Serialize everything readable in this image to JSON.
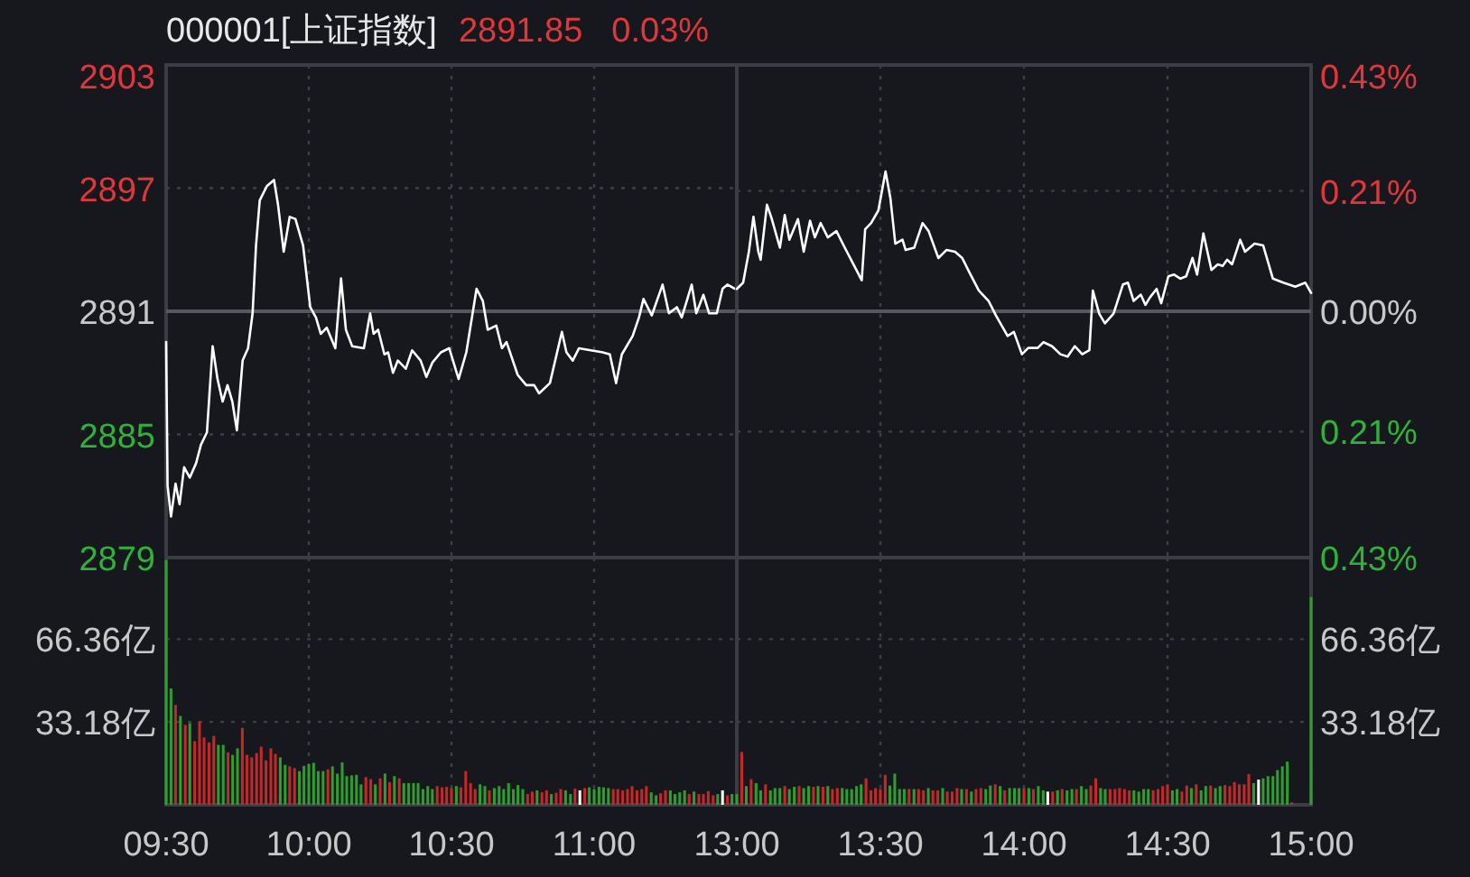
{
  "chart_data": [
    {
      "type": "line",
      "title": "000001[上证指数]",
      "annotations": [
        "2891.85",
        "0.03%"
      ],
      "x": [
        9.5,
        9.505,
        9.517,
        9.533,
        9.547,
        9.563,
        9.583,
        9.605,
        9.622,
        9.643,
        9.663,
        9.68,
        9.698,
        9.715,
        9.732,
        9.748,
        9.768,
        9.787,
        9.803,
        9.815,
        9.828,
        9.853,
        9.878,
        9.892,
        9.912,
        9.933,
        9.953,
        9.98,
        10.005,
        10.025,
        10.042,
        10.063,
        10.093,
        10.113,
        10.13,
        10.152,
        10.193,
        10.215,
        10.227,
        10.243,
        10.265,
        10.278,
        10.295,
        10.312,
        10.34,
        10.362,
        10.392,
        10.412,
        10.433,
        10.463,
        10.492,
        10.525,
        10.552,
        10.588,
        10.61,
        10.627,
        10.657,
        10.677,
        10.693,
        10.732,
        10.762,
        10.79,
        10.807,
        10.845,
        10.887,
        10.903,
        10.925,
        10.947,
        10.988,
        11.03,
        11.055,
        11.077,
        11.097,
        11.135,
        11.157,
        11.173,
        11.202,
        11.24,
        11.262,
        11.29,
        11.307,
        11.342,
        11.358,
        11.383,
        11.403,
        11.43,
        11.45,
        11.467,
        11.492
      ],
      "values": [
        2889.5,
        2882.5,
        2881.0,
        2882.6,
        2881.6,
        2883.4,
        2882.9,
        2883.6,
        2884.5,
        2885.1,
        2889.3,
        2887.7,
        2886.6,
        2887.4,
        2886.6,
        2885.2,
        2888.6,
        2889.2,
        2890.9,
        2894.2,
        2896.4,
        2897.1,
        2897.4,
        2896.2,
        2893.9,
        2895.6,
        2895.5,
        2894.2,
        2891.2,
        2890.7,
        2889.9,
        2890.2,
        2889.2,
        2892.6,
        2890.1,
        2889.3,
        2889.2,
        2890.9,
        2889.9,
        2890.1,
        2888.9,
        2889.0,
        2888.0,
        2888.6,
        2888.2,
        2889.1,
        2888.6,
        2887.8,
        2888.5,
        2889.0,
        2889.2,
        2887.7,
        2889.0,
        2892.1,
        2891.5,
        2890.1,
        2890.3,
        2889.2,
        2889.5,
        2887.9,
        2887.4,
        2887.4,
        2887.0,
        2887.5,
        2890.0,
        2889.0,
        2888.6,
        2889.2,
        2889.1,
        2889.0,
        2888.9,
        2887.5,
        2888.9,
        2889.8,
        2890.7,
        2891.6,
        2890.8,
        2892.3,
        2890.9,
        2891.2,
        2890.7,
        2892.3,
        2890.9,
        2891.8,
        2890.9,
        2890.9,
        2892.1,
        2892.3,
        2892.1
      ],
      "color": "#ffffff",
      "xlim": [
        9.5,
        11.5
      ],
      "ylim": [
        2879,
        2903
      ],
      "yticks": [
        2879,
        2885,
        2891,
        2897,
        2903
      ],
      "xticks": [
        {
          "value": 9.5,
          "label": null
        },
        {
          "value": 10,
          "label": null
        },
        {
          "value": 10.5,
          "label": null
        },
        {
          "value": 11,
          "label": null
        }
      ],
      "ref_lines": [
        {
          "axis": "y",
          "value": 2891
        }
      ],
      "grid": true,
      "tick_labels": "y"
    },
    {
      "type": "line",
      "x": [
        13,
        13.022,
        13.042,
        13.058,
        13.075,
        13.083,
        13.105,
        13.122,
        13.15,
        13.167,
        13.183,
        13.213,
        13.233,
        13.255,
        13.272,
        13.292,
        13.317,
        13.347,
        13.372,
        13.402,
        13.435,
        13.447,
        13.468,
        13.493,
        13.518,
        13.535,
        13.552,
        13.577,
        13.588,
        13.618,
        13.647,
        13.668,
        13.702,
        13.73,
        13.76,
        13.785,
        13.81,
        13.843,
        13.877,
        13.902,
        13.943,
        13.965,
        13.993,
        14.015,
        14.048,
        14.068,
        14.098,
        14.127,
        14.152,
        14.177,
        14.203,
        14.228,
        14.24,
        14.262,
        14.282,
        14.312,
        14.345,
        14.362,
        14.382,
        14.407,
        14.423,
        14.44,
        14.462,
        14.478,
        14.503,
        14.523,
        14.545,
        14.565,
        14.587,
        14.603,
        14.625,
        14.653,
        14.675,
        14.692,
        14.708,
        14.725,
        14.753,
        14.77,
        14.803,
        14.833,
        14.867,
        14.903,
        14.945,
        14.98,
        15
      ],
      "values": [
        0.039,
        0.05,
        0.104,
        0.165,
        0.104,
        0.09,
        0.186,
        0.161,
        0.111,
        0.168,
        0.125,
        0.161,
        0.104,
        0.158,
        0.129,
        0.154,
        0.129,
        0.14,
        0.115,
        0.086,
        0.054,
        0.143,
        0.154,
        0.176,
        0.244,
        0.197,
        0.118,
        0.125,
        0.107,
        0.111,
        0.154,
        0.14,
        0.093,
        0.107,
        0.104,
        0.093,
        0.068,
        0.036,
        0.018,
        -0.007,
        -0.043,
        -0.036,
        -0.075,
        -0.064,
        -0.064,
        -0.054,
        -0.061,
        -0.075,
        -0.079,
        -0.061,
        -0.075,
        -0.068,
        0.036,
        -0.004,
        -0.021,
        -0.004,
        0.047,
        0.05,
        0.018,
        0.029,
        0.011,
        0.025,
        0.039,
        0.014,
        0.061,
        0.064,
        0.057,
        0.061,
        0.093,
        0.064,
        0.136,
        0.072,
        0.082,
        0.079,
        0.09,
        0.082,
        0.125,
        0.104,
        0.118,
        0.115,
        0.057,
        0.05,
        0.043,
        0.05,
        0.032
      ],
      "color": "#ffffff",
      "xlim": [
        13,
        15
      ],
      "ylim": [
        -0.43,
        0.43
      ],
      "yticks": [
        {
          "value": -0.43,
          "label": "0.43%"
        },
        {
          "value": -0.21,
          "label": "0.21%"
        },
        {
          "value": 0,
          "label": "0.00%"
        },
        {
          "value": 0.21,
          "label": "0.21%"
        },
        {
          "value": 0.43,
          "label": "0.43%"
        }
      ],
      "xticks": [
        {
          "value": 13,
          "label": null
        },
        {
          "value": 13.5,
          "label": null
        },
        {
          "value": 14,
          "label": null
        },
        {
          "value": 14.5,
          "label": null
        },
        {
          "value": 15,
          "label": null
        }
      ],
      "ref_lines": [
        {
          "axis": "y",
          "value": 0
        }
      ],
      "grid": true,
      "tick_labels": "y"
    },
    {
      "type": "bar",
      "x": [
        9.5,
        9.517,
        9.533,
        9.55,
        9.567,
        9.583,
        9.6,
        9.617,
        9.633,
        9.65,
        9.667,
        9.683,
        9.7,
        9.717,
        9.733,
        9.75,
        9.767,
        9.783,
        9.8,
        9.817,
        9.833,
        9.85,
        9.867,
        9.883,
        9.9,
        9.917,
        9.933,
        9.95,
        9.967,
        9.983,
        10,
        10.017,
        10.033,
        10.05,
        10.067,
        10.083,
        10.1,
        10.117,
        10.133,
        10.15,
        10.167,
        10.183,
        10.2,
        10.217,
        10.233,
        10.25,
        10.267,
        10.283,
        10.3,
        10.317,
        10.333,
        10.35,
        10.367,
        10.383,
        10.4,
        10.417,
        10.433,
        10.45,
        10.467,
        10.483,
        10.5,
        10.517,
        10.533,
        10.55,
        10.567,
        10.583,
        10.6,
        10.617,
        10.633,
        10.65,
        10.667,
        10.683,
        10.7,
        10.717,
        10.733,
        10.75,
        10.767,
        10.783,
        10.8,
        10.817,
        10.833,
        10.85,
        10.867,
        10.883,
        10.9,
        10.917,
        10.933,
        10.95,
        10.967,
        10.983,
        11,
        11.017,
        11.033,
        11.05,
        11.067,
        11.083,
        11.1,
        11.117,
        11.133,
        11.15,
        11.167,
        11.183,
        11.2,
        11.217,
        11.233,
        11.25,
        11.267,
        11.283,
        11.3,
        11.317,
        11.333,
        11.35,
        11.367,
        11.383,
        11.4,
        11.417,
        11.433,
        11.45,
        11.467,
        11.483
      ],
      "values": [
        98,
        46.6,
        40,
        35.6,
        32,
        32.7,
        25.5,
        33.4,
        27,
        25,
        27.6,
        24,
        24,
        21,
        20,
        22.6,
        30.8,
        20,
        19,
        20.7,
        23.3,
        17.8,
        22.6,
        20.4,
        19,
        16,
        15.4,
        14.7,
        13.5,
        15.6,
        16.3,
        16.8,
        13.5,
        13.5,
        14.2,
        15.4,
        12.5,
        17,
        11.5,
        11.8,
        12,
        8.2,
        11.1,
        10.3,
        8.2,
        10.6,
        12.5,
        9.1,
        11.5,
        10.6,
        8.7,
        8.7,
        8.7,
        8.7,
        6.3,
        7.5,
        6.3,
        7.5,
        7,
        7.2,
        6.7,
        7.5,
        7,
        13.5,
        8.7,
        6.3,
        8.2,
        7.5,
        5.8,
        6.7,
        7.5,
        6.3,
        8.7,
        6.3,
        7.9,
        6.3,
        4.3,
        5.3,
        5.8,
        5,
        5.8,
        4.3,
        4.8,
        6.3,
        5.8,
        4.3,
        6.5,
        5.8,
        6.7,
        7,
        6.3,
        7.2,
        7,
        6.7,
        6.3,
        6.3,
        5.8,
        6.3,
        7.5,
        5.8,
        6.3,
        7.5,
        5,
        3.8,
        4.6,
        5.8,
        5.8,
        4.3,
        5,
        5.8,
        4.3,
        5.3,
        4.3,
        4.3,
        5.5,
        3.8,
        4.3,
        5.8,
        3.8,
        4.3
      ],
      "colors": [
        "#2e9e2e",
        "#2e9e2e",
        "#c62828",
        "#2e9e2e",
        "#c62828",
        "#2e9e2e",
        "#c62828",
        "#c62828",
        "#c62828",
        "#c62828",
        "#c62828",
        "#2e9e2e",
        "#2e9e2e",
        "#c62828",
        "#2e9e2e",
        "#2e9e2e",
        "#c62828",
        "#c62828",
        "#c62828",
        "#c62828",
        "#c62828",
        "#c62828",
        "#c62828",
        "#c62828",
        "#2e9e2e",
        "#2e9e2e",
        "#c62828",
        "#c62828",
        "#2e9e2e",
        "#2e9e2e",
        "#2e9e2e",
        "#2e9e2e",
        "#2e9e2e",
        "#2e9e2e",
        "#c62828",
        "#2e9e2e",
        "#2e9e2e",
        "#2e9e2e",
        "#2e9e2e",
        "#2e9e2e",
        "#2e9e2e",
        "#2e9e2e",
        "#c62828",
        "#c62828",
        "#2e9e2e",
        "#c62828",
        "#2e9e2e",
        "#c62828",
        "#2e9e2e",
        "#c62828",
        "#2e9e2e",
        "#2e9e2e",
        "#2e9e2e",
        "#2e9e2e",
        "#2e9e2e",
        "#2e9e2e",
        "#2e9e2e",
        "#c62828",
        "#c62828",
        "#c62828",
        "#c62828",
        "#2e9e2e",
        "#c62828",
        "#c62828",
        "#c62828",
        "#c62828",
        "#2e9e2e",
        "#2e9e2e",
        "#c62828",
        "#2e9e2e",
        "#2e9e2e",
        "#2e9e2e",
        "#2e9e2e",
        "#2e9e2e",
        "#2e9e2e",
        "#2e9e2e",
        "#c62828",
        "#c62828",
        "#2e9e2e",
        "#c62828",
        "#c62828",
        "#2e9e2e",
        "#c62828",
        "#c62828",
        "#2e9e2e",
        "#2e9e2e",
        "#c62828",
        "#ffffff",
        "#c62828",
        "#2e9e2e",
        "#2e9e2e",
        "#2e9e2e",
        "#2e9e2e",
        "#2e9e2e",
        "#c62828",
        "#c62828",
        "#c62828",
        "#c62828",
        "#c62828",
        "#c62828",
        "#c62828",
        "#c62828",
        "#2e9e2e",
        "#2e9e2e",
        "#c62828",
        "#c62828",
        "#2e9e2e",
        "#2e9e2e",
        "#2e9e2e",
        "#2e9e2e",
        "#c62828",
        "#2e9e2e",
        "#c62828",
        "#c62828",
        "#c62828",
        "#c62828",
        "#2e9e2e",
        "#ffffff",
        "#c62828",
        "#2e9e2e"
      ],
      "xlim": [
        9.5,
        11.5
      ],
      "ylim": [
        0,
        99
      ],
      "yticks": [
        {
          "value": 33.18,
          "label": "33.18亿"
        },
        {
          "value": 66.36,
          "label": "66.36亿"
        }
      ],
      "xticks": [
        {
          "value": 9.5,
          "label": "09:30"
        },
        {
          "value": 10,
          "label": "10:00"
        },
        {
          "value": 10.5,
          "label": "10:30"
        },
        {
          "value": 11,
          "label": "11:00"
        }
      ],
      "grid": true
    },
    {
      "type": "bar",
      "x": [
        13,
        13.017,
        13.033,
        13.05,
        13.067,
        13.083,
        13.1,
        13.117,
        13.133,
        13.15,
        13.167,
        13.183,
        13.2,
        13.217,
        13.233,
        13.25,
        13.267,
        13.283,
        13.3,
        13.317,
        13.333,
        13.35,
        13.367,
        13.383,
        13.4,
        13.417,
        13.433,
        13.45,
        13.467,
        13.483,
        13.5,
        13.517,
        13.533,
        13.55,
        13.567,
        13.583,
        13.6,
        13.617,
        13.633,
        13.65,
        13.667,
        13.683,
        13.7,
        13.717,
        13.733,
        13.75,
        13.767,
        13.783,
        13.8,
        13.817,
        13.833,
        13.85,
        13.867,
        13.883,
        13.9,
        13.917,
        13.933,
        13.95,
        13.967,
        13.983,
        14,
        14.017,
        14.033,
        14.05,
        14.067,
        14.083,
        14.1,
        14.117,
        14.133,
        14.15,
        14.167,
        14.183,
        14.2,
        14.217,
        14.233,
        14.25,
        14.267,
        14.283,
        14.3,
        14.317,
        14.333,
        14.35,
        14.367,
        14.383,
        14.4,
        14.417,
        14.433,
        14.45,
        14.467,
        14.483,
        14.5,
        14.517,
        14.533,
        14.55,
        14.567,
        14.583,
        14.6,
        14.617,
        14.633,
        14.65,
        14.667,
        14.683,
        14.7,
        14.717,
        14.733,
        14.75,
        14.767,
        14.783,
        14.8,
        14.817,
        14.833,
        14.85,
        14.867,
        14.883,
        14.9,
        14.917,
        14.933,
        15
      ],
      "values": [
        4.3,
        21.2,
        7.5,
        10.3,
        8.7,
        5.8,
        8.2,
        5.8,
        6.7,
        6.7,
        7.5,
        6.3,
        7.2,
        7.5,
        6.7,
        7.5,
        7.2,
        7.5,
        7.2,
        7.5,
        6.3,
        6.7,
        6.7,
        6.3,
        6.3,
        7.5,
        8.2,
        10.6,
        5.8,
        6.7,
        6.3,
        12,
        7.7,
        12.5,
        6.3,
        6.3,
        6.3,
        6.3,
        6.3,
        5.8,
        6.7,
        5.8,
        5.8,
        6.7,
        5.3,
        5.3,
        6.7,
        6.3,
        6.3,
        5.3,
        6.3,
        6.7,
        6.3,
        7.7,
        8.2,
        7.5,
        5.8,
        6.7,
        6.7,
        6.7,
        6.7,
        6.7,
        6.3,
        7.5,
        5.8,
        5.3,
        5.3,
        5.8,
        6.3,
        5.8,
        6.3,
        6.3,
        7.5,
        6.3,
        7.7,
        10.6,
        6.7,
        6.3,
        6.3,
        6.3,
        6.7,
        6.3,
        5.8,
        5.8,
        5.3,
        6.3,
        6.3,
        5.8,
        6.3,
        7.5,
        8.2,
        5.8,
        6.3,
        5.3,
        7.7,
        6.7,
        8.2,
        5.8,
        7.5,
        7.7,
        6.7,
        7.5,
        7.9,
        7.5,
        9.1,
        8.2,
        8.2,
        12.3,
        8.7,
        10.1,
        10.6,
        11.5,
        11.5,
        13.9,
        15.4,
        17.3,
        1,
        83.2
      ],
      "colors": [
        "#2e9e2e",
        "#c62828",
        "#2e9e2e",
        "#c62828",
        "#2e9e2e",
        "#2e9e2e",
        "#c62828",
        "#2e9e2e",
        "#2e9e2e",
        "#2e9e2e",
        "#c62828",
        "#2e9e2e",
        "#2e9e2e",
        "#c62828",
        "#2e9e2e",
        "#2e9e2e",
        "#c62828",
        "#2e9e2e",
        "#c62828",
        "#2e9e2e",
        "#c62828",
        "#c62828",
        "#2e9e2e",
        "#2e9e2e",
        "#2e9e2e",
        "#2e9e2e",
        "#2e9e2e",
        "#c62828",
        "#c62828",
        "#c62828",
        "#c62828",
        "#c62828",
        "#2e9e2e",
        "#2e9e2e",
        "#2e9e2e",
        "#2e9e2e",
        "#c62828",
        "#2e9e2e",
        "#c62828",
        "#c62828",
        "#2e9e2e",
        "#c62828",
        "#c62828",
        "#2e9e2e",
        "#c62828",
        "#c62828",
        "#c62828",
        "#2e9e2e",
        "#c62828",
        "#2e9e2e",
        "#c62828",
        "#c62828",
        "#2e9e2e",
        "#2e9e2e",
        "#c62828",
        "#2e9e2e",
        "#c62828",
        "#2e9e2e",
        "#2e9e2e",
        "#2e9e2e",
        "#c62828",
        "#2e9e2e",
        "#c62828",
        "#2e9e2e",
        "#2e9e2e",
        "#ffffff",
        "#c62828",
        "#2e9e2e",
        "#c62828",
        "#2e9e2e",
        "#2e9e2e",
        "#c62828",
        "#2e9e2e",
        "#2e9e2e",
        "#c62828",
        "#c62828",
        "#2e9e2e",
        "#2e9e2e",
        "#c62828",
        "#c62828",
        "#c62828",
        "#c62828",
        "#c62828",
        "#2e9e2e",
        "#2e9e2e",
        "#2e9e2e",
        "#2e9e2e",
        "#c62828",
        "#c62828",
        "#c62828",
        "#c62828",
        "#2e9e2e",
        "#2e9e2e",
        "#c62828",
        "#c62828",
        "#2e9e2e",
        "#c62828",
        "#2e9e2e",
        "#2e9e2e",
        "#c62828",
        "#2e9e2e",
        "#2e9e2e",
        "#c62828",
        "#c62828",
        "#c62828",
        "#c62828",
        "#c62828",
        "#c62828",
        "#2e9e2e",
        "#ffffff",
        "#2e9e2e",
        "#2e9e2e",
        "#2e9e2e",
        "#2e9e2e",
        "#2e9e2e",
        "#2e9e2e",
        "#c62828",
        "#2e9e2e"
      ],
      "xlim": [
        13,
        15
      ],
      "ylim": [
        0,
        99
      ],
      "yticks": [
        {
          "value": 33.18,
          "label": "33.18亿"
        },
        {
          "value": 66.36,
          "label": "66.36亿"
        }
      ],
      "xticks": [
        {
          "value": 13,
          "label": "13:00"
        },
        {
          "value": 13.5,
          "label": "13:30"
        },
        {
          "value": 14,
          "label": "14:00"
        },
        {
          "value": 14.5,
          "label": "14:30"
        },
        {
          "value": 15,
          "label": "15:00"
        }
      ],
      "grid": true
    }
  ]
}
